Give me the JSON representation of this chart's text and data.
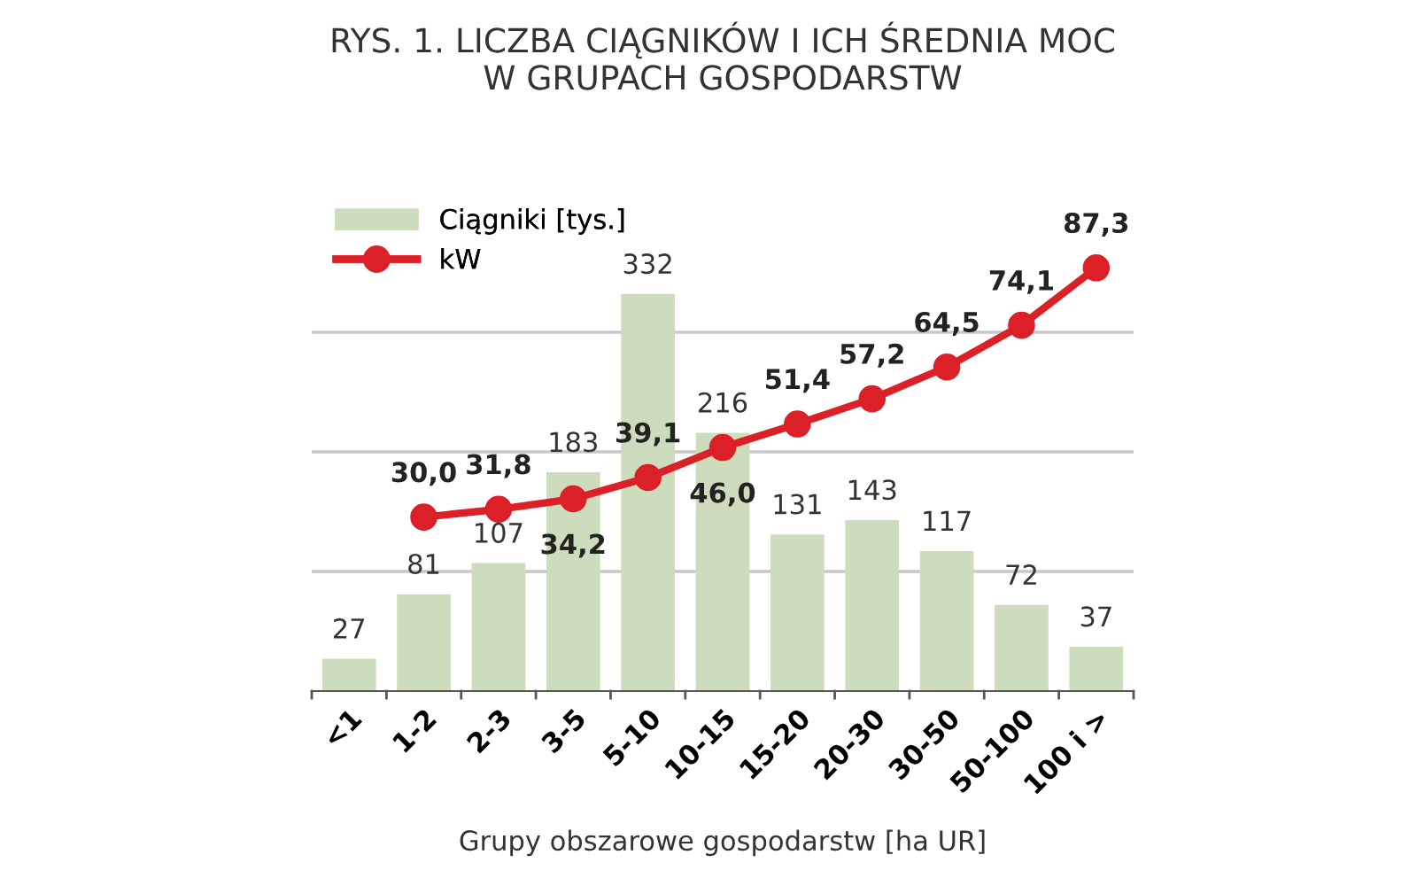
{
  "chart_data": {
    "type": "bar",
    "title": "RYS. 1. LICZBA CIĄGNIKÓW I ICH ŚREDNIA MOC\nW GRUPACH GOSPODARSTW",
    "xlabel": "Grupy obszarowe gospodarstw [ha UR]",
    "categories": [
      "<1",
      "1-2",
      "2-3",
      "3-5",
      "5-10",
      "10-15",
      "15-20",
      "20-30",
      "30-50",
      "50-100",
      "100 i >"
    ],
    "series": [
      {
        "name": "Ciągniki [tys.]",
        "color": "#cddcbc",
        "values": [
          27,
          81,
          107,
          183,
          332,
          216,
          131,
          143,
          117,
          72,
          37
        ]
      },
      {
        "name": "kW",
        "type": "line",
        "axis": "y2",
        "color": "#dc2027",
        "marker": "circle",
        "line_style": "solid",
        "values": [
          null,
          30.0,
          31.8,
          34.2,
          39.1,
          46.0,
          51.4,
          57.2,
          64.5,
          74.1,
          87.3
        ],
        "value_labels": [
          null,
          "30,0",
          "31,8",
          "34,2",
          "39,1",
          "46,0",
          "51,4",
          "57,2",
          "64,5",
          "74,1",
          "87,3"
        ]
      }
    ],
    "data_labels": true,
    "ylim": [
      0,
      400
    ],
    "yticks": [
      {
        "value": 100,
        "label": null
      },
      {
        "value": 200,
        "label": null
      },
      {
        "value": 300,
        "label": null
      }
    ],
    "y2lim": [
      -10,
      100
    ],
    "tick_labels": "x",
    "grid": "y",
    "legend": "top left"
  }
}
